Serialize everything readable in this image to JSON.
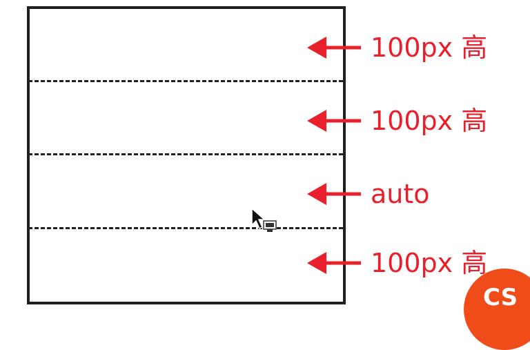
{
  "rows": [
    {
      "label": "100px 高"
    },
    {
      "label": "100px 高"
    },
    {
      "label": "auto"
    },
    {
      "label": "100px 高"
    }
  ],
  "colors": {
    "accent": "#e8202b",
    "border": "#231f20",
    "logo": "#f04c1a"
  },
  "logo": {
    "text": "CS"
  }
}
